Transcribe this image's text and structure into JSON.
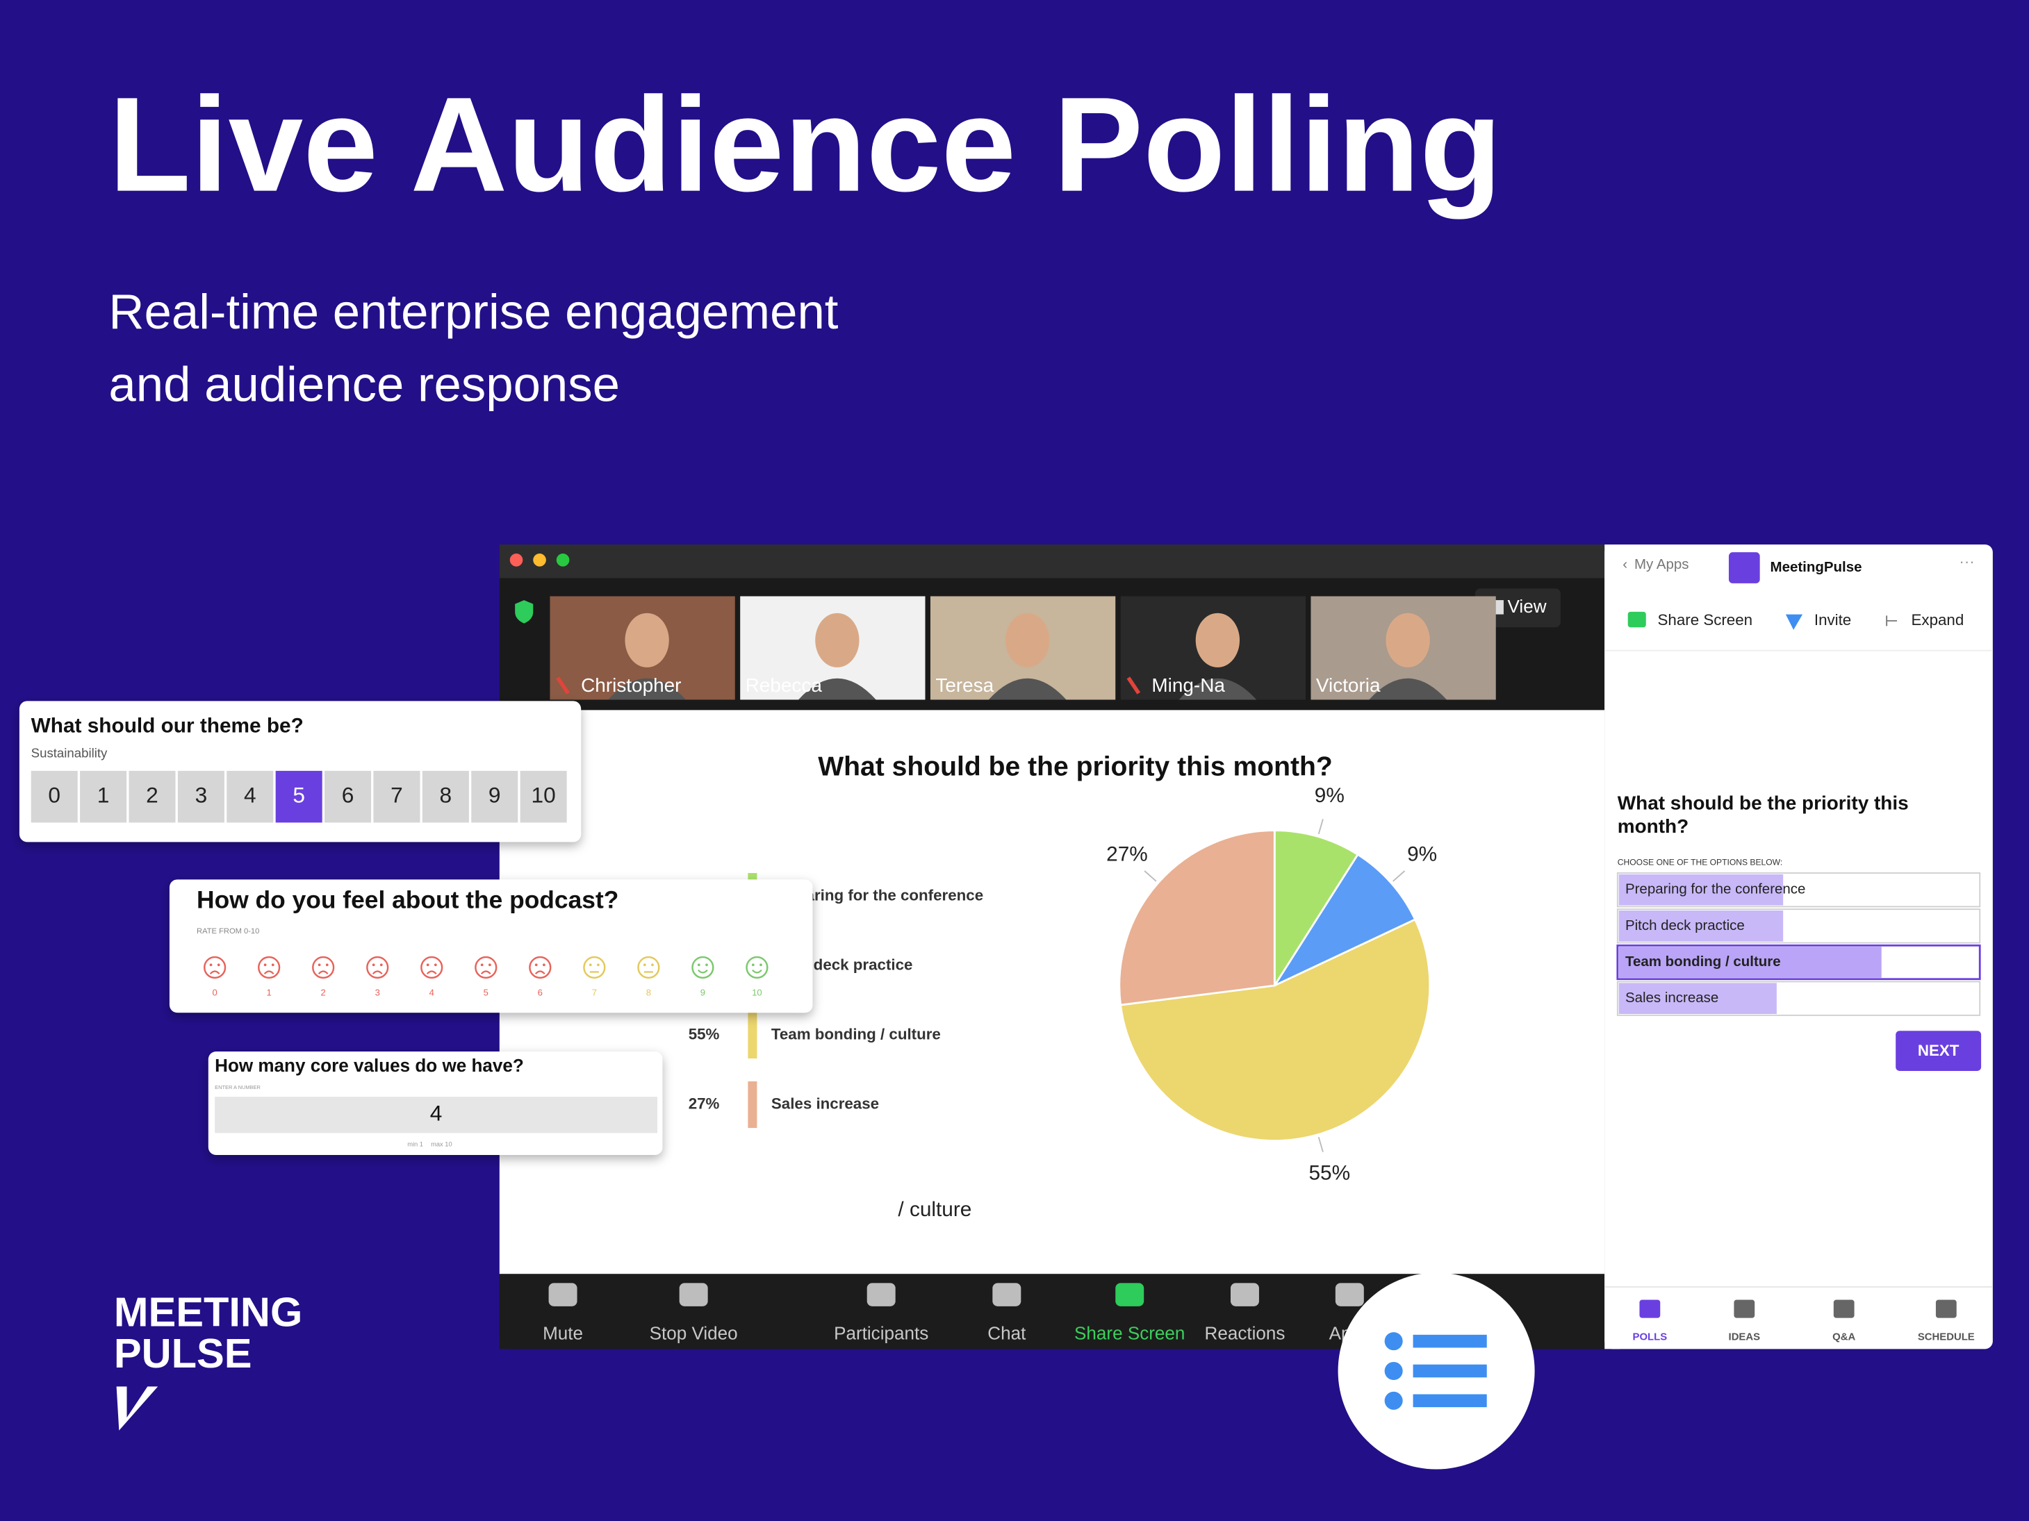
{
  "header": {
    "title": "Live Audience Polling",
    "subtitle_lines": [
      "Real-time enterprise engagement",
      "and audience response"
    ]
  },
  "logo": {
    "lines": [
      "MEETING",
      "PULSE"
    ]
  },
  "meeting": {
    "participants": [
      "Christopher",
      "Rebecca",
      "Teresa",
      "Ming-Na",
      "Victoria"
    ],
    "view_button": "View",
    "fragment": "/ culture",
    "toolbar": [
      "Mute",
      "Stop Video",
      "Participants",
      "Chat",
      "Share Screen",
      "Reactions",
      "Apps"
    ]
  },
  "chart_data": {
    "type": "pie",
    "title": "What should be the priority this month?",
    "categories": [
      "Preparing for the conference",
      "Pitch deck practice",
      "Team bonding / culture",
      "Sales increase"
    ],
    "values": [
      9,
      9,
      55,
      27
    ],
    "value_labels": [
      "9%",
      "9%",
      "55%",
      "27%"
    ],
    "colors": [
      "#a9e26a",
      "#5b9cf6",
      "#ecd66e",
      "#e9b093"
    ]
  },
  "side_panel": {
    "back_link": "My Apps",
    "app_name": "MeetingPulse",
    "actions": [
      "Share Screen",
      "Invite",
      "Expand"
    ],
    "question_lines": [
      "What should be the priority this",
      "month?"
    ],
    "instruction": "CHOOSE ONE OF THE OPTIONS BELOW:",
    "options": [
      "Preparing for the conference",
      "Pitch deck practice",
      "Team bonding / culture",
      "Sales increase"
    ],
    "selected_option": 2,
    "button": "NEXT",
    "tabs": [
      "POLLS",
      "IDEAS",
      "Q&A",
      "SCHEDULE"
    ]
  },
  "cards": {
    "theme": {
      "question": "What should our theme be?",
      "selected_label": "Sustainability",
      "scale": [
        0,
        1,
        2,
        3,
        4,
        5,
        6,
        7,
        8,
        9,
        10
      ],
      "chosen": 5
    },
    "podcast": {
      "question": "How do you feel about the podcast?",
      "hint": "RATE FROM 0-10",
      "scale": [
        0,
        1,
        2,
        3,
        4,
        5,
        6,
        7,
        8,
        9,
        10
      ]
    },
    "core": {
      "question": "How many core values do we have?",
      "hint": "ENTER A NUMBER",
      "answer": 4,
      "min": "min 1",
      "max": "max 10"
    }
  }
}
